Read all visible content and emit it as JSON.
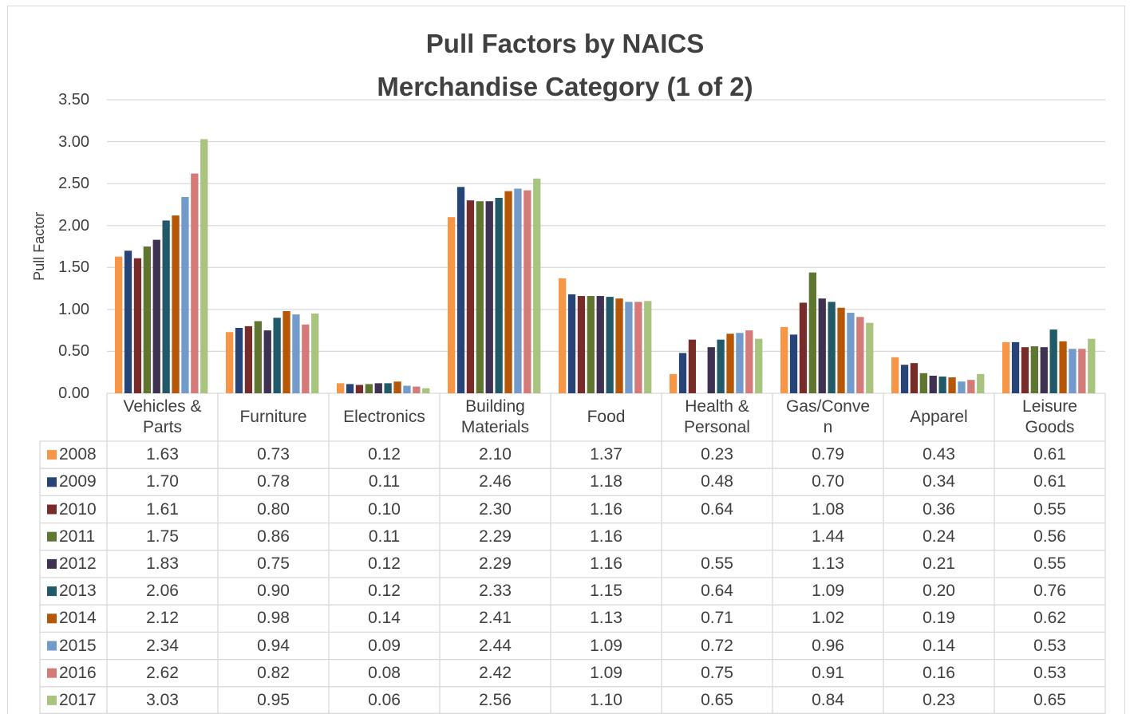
{
  "chart_data": {
    "type": "bar",
    "title": "Pull Factors by NAICS\nMerchandise Category (1 of 2)",
    "y_label": "Pull Factor",
    "categories": [
      "Vehicles &\nParts",
      "Furniture",
      "Electronics",
      "Building\nMaterials",
      "Food",
      "Health &\nPersonal",
      "Gas/Conve\nn",
      "Apparel",
      "Leisure\nGoods"
    ],
    "ylim": [
      0,
      3.5
    ],
    "yticks": [
      {
        "value": 0,
        "label": "0.00"
      },
      {
        "value": 0.5,
        "label": "0.50"
      },
      {
        "value": 1,
        "label": "1.00"
      },
      {
        "value": 1.5,
        "label": "1.50"
      },
      {
        "value": 2,
        "label": "2.00"
      },
      {
        "value": 2.5,
        "label": "2.50"
      },
      {
        "value": 3,
        "label": "3.00"
      },
      {
        "value": 3.5,
        "label": "3.50"
      }
    ],
    "grid": true,
    "data_table": true,
    "series": [
      {
        "name": "2008",
        "color": "#f79646",
        "values": [
          1.63,
          0.73,
          0.12,
          2.1,
          1.37,
          0.23,
          0.79,
          0.43,
          0.61
        ],
        "value_labels": [
          "1.63",
          "0.73",
          "0.12",
          "2.10",
          "1.37",
          "0.23",
          "0.79",
          "0.43",
          "0.61"
        ]
      },
      {
        "name": "2009",
        "color": "#264478",
        "values": [
          1.7,
          0.78,
          0.11,
          2.46,
          1.18,
          0.48,
          0.7,
          0.34,
          0.61
        ],
        "value_labels": [
          "1.70",
          "0.78",
          "0.11",
          "2.46",
          "1.18",
          "0.48",
          "0.70",
          "0.34",
          "0.61"
        ]
      },
      {
        "name": "2010",
        "color": "#772c2a",
        "values": [
          1.61,
          0.8,
          0.1,
          2.3,
          1.16,
          0.64,
          1.08,
          0.36,
          0.55
        ],
        "value_labels": [
          "1.61",
          "0.80",
          "0.10",
          "2.30",
          "1.16",
          "0.64",
          "1.08",
          "0.36",
          "0.55"
        ]
      },
      {
        "name": "2011",
        "color": "#5f7530",
        "values": [
          1.75,
          0.86,
          0.11,
          2.29,
          1.16,
          null,
          1.44,
          0.24,
          0.56
        ],
        "value_labels": [
          "1.75",
          "0.86",
          "0.11",
          "2.29",
          "1.16",
          null,
          "1.44",
          "0.24",
          "0.56"
        ]
      },
      {
        "name": "2012",
        "color": "#3f3151",
        "values": [
          1.83,
          0.75,
          0.12,
          2.29,
          1.16,
          0.55,
          1.13,
          0.21,
          0.55
        ],
        "value_labels": [
          "1.83",
          "0.75",
          "0.12",
          "2.29",
          "1.16",
          "0.55",
          "1.13",
          "0.21",
          "0.55"
        ]
      },
      {
        "name": "2013",
        "color": "#215968",
        "values": [
          2.06,
          0.9,
          0.12,
          2.33,
          1.15,
          0.64,
          1.09,
          0.2,
          0.76
        ],
        "value_labels": [
          "2.06",
          "0.90",
          "0.12",
          "2.33",
          "1.15",
          "0.64",
          "1.09",
          "0.20",
          "0.76"
        ]
      },
      {
        "name": "2014",
        "color": "#b65708",
        "values": [
          2.12,
          0.98,
          0.14,
          2.41,
          1.13,
          0.71,
          1.02,
          0.19,
          0.62
        ],
        "value_labels": [
          "2.12",
          "0.98",
          "0.14",
          "2.41",
          "1.13",
          "0.71",
          "1.02",
          "0.19",
          "0.62"
        ]
      },
      {
        "name": "2015",
        "color": "#729aca",
        "values": [
          2.34,
          0.94,
          0.09,
          2.44,
          1.09,
          0.72,
          0.96,
          0.14,
          0.53
        ],
        "value_labels": [
          "2.34",
          "0.94",
          "0.09",
          "2.44",
          "1.09",
          "0.72",
          "0.96",
          "0.14",
          "0.53"
        ]
      },
      {
        "name": "2016",
        "color": "#d47b79",
        "values": [
          2.62,
          0.82,
          0.08,
          2.42,
          1.09,
          0.75,
          0.91,
          0.16,
          0.53
        ],
        "value_labels": [
          "2.62",
          "0.82",
          "0.08",
          "2.42",
          "1.09",
          "0.75",
          "0.91",
          "0.16",
          "0.53"
        ]
      },
      {
        "name": "2017",
        "color": "#a9c47f",
        "values": [
          3.03,
          0.95,
          0.06,
          2.56,
          1.1,
          0.65,
          0.84,
          0.23,
          0.65
        ],
        "value_labels": [
          "3.03",
          "0.95",
          "0.06",
          "2.56",
          "1.10",
          "0.65",
          "0.84",
          "0.23",
          "0.65"
        ]
      }
    ]
  }
}
